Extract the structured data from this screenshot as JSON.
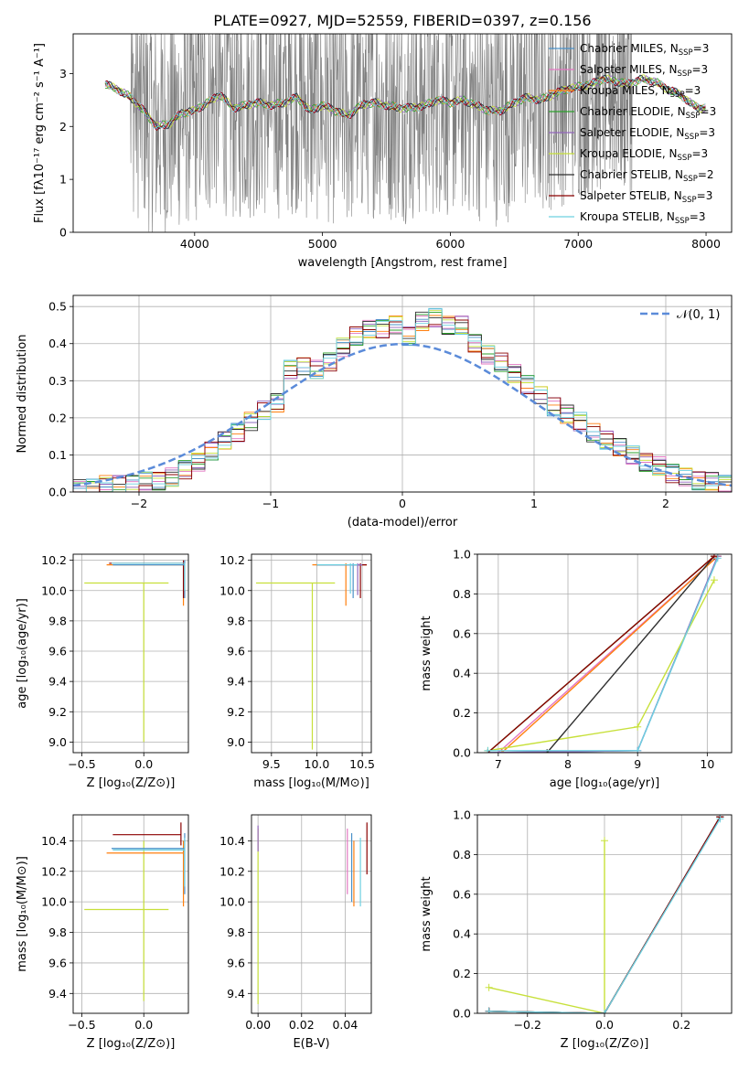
{
  "title": "PLATE=0927, MJD=52559, FIBERID=0397, z=0.156",
  "colors": {
    "spectrum": "#808080",
    "grid": "#b0b0b0",
    "normal": "#5b8bd9",
    "models": [
      "#4a90c8",
      "#e377c2",
      "#ff7f0e",
      "#2ca02c",
      "#9467bd",
      "#c7e03a",
      "#2f2f2f",
      "#8b0000",
      "#6dd0e0"
    ]
  },
  "chart_data": [
    {
      "id": "spectrum",
      "type": "line",
      "xlabel": "wavelength [Angstrom, rest frame]",
      "ylabel": "Flux [fλ10⁻¹⁷ erg cm⁻² s⁻¹ A⁻¹]",
      "xlim": [
        3050,
        8200
      ],
      "ylim": [
        0,
        3.75
      ],
      "xticks": [
        4000,
        5000,
        6000,
        7000,
        8000
      ],
      "yticks": [
        0,
        1,
        2,
        3
      ],
      "grid": false,
      "legend_position": "upper right",
      "legend": [
        {
          "label": "Chabrier MILES, N",
          "sub": "SSP",
          "tail": "=3"
        },
        {
          "label": "Salpeter MILES, N",
          "sub": "SSP",
          "tail": "=3"
        },
        {
          "label": "Kroupa MILES, N",
          "sub": "SSP",
          "tail": "=3"
        },
        {
          "label": "Chabrier ELODIE, N",
          "sub": "SSP",
          "tail": "=3"
        },
        {
          "label": "Salpeter ELODIE, N",
          "sub": "SSP",
          "tail": "=3"
        },
        {
          "label": "Kroupa ELODIE, N",
          "sub": "SSP",
          "tail": "=3"
        },
        {
          "label": "Chabrier STELIB, N",
          "sub": "SSP",
          "tail": "=2"
        },
        {
          "label": "Salpeter STELIB, N",
          "sub": "SSP",
          "tail": "=3"
        },
        {
          "label": "Kroupa STELIB, N",
          "sub": "SSP",
          "tail": "=3"
        }
      ],
      "data_range": [
        3300,
        8000
      ],
      "noisy_range": [
        3500,
        7420
      ],
      "model_x": [
        3300,
        3400,
        3500,
        3600,
        3700,
        3800,
        3900,
        4000,
        4100,
        4200,
        4300,
        4400,
        4500,
        4600,
        4700,
        4800,
        4900,
        5000,
        5100,
        5200,
        5300,
        5400,
        5500,
        5600,
        5700,
        5800,
        5900,
        6000,
        6100,
        6200,
        6300,
        6400,
        6500,
        6600,
        6700,
        6800,
        6900,
        7000,
        7100,
        7200,
        7300,
        7400,
        7500,
        7600,
        7700,
        7800,
        7900,
        7950
      ],
      "model_y": [
        2.8,
        2.7,
        2.55,
        2.3,
        2.0,
        2.05,
        2.25,
        2.3,
        2.45,
        2.6,
        2.35,
        2.4,
        2.45,
        2.4,
        2.45,
        2.55,
        2.3,
        2.4,
        2.3,
        2.2,
        2.4,
        2.45,
        2.4,
        2.35,
        2.35,
        2.4,
        2.5,
        2.45,
        2.5,
        2.4,
        2.3,
        2.3,
        2.45,
        2.55,
        2.5,
        2.6,
        2.7,
        2.75,
        2.8,
        2.9,
        2.85,
        2.8,
        2.9,
        2.85,
        2.7,
        2.6,
        2.4,
        2.35
      ]
    },
    {
      "id": "residuals",
      "type": "histogram",
      "xlabel": "(data-model)/error",
      "ylabel": "Normed distribution",
      "xlim": [
        -2.5,
        2.5
      ],
      "ylim": [
        0,
        0.53
      ],
      "xticks": [
        -2,
        -1,
        0,
        1,
        2
      ],
      "yticks": [
        0.0,
        0.1,
        0.2,
        0.3,
        0.4,
        0.5
      ],
      "grid": true,
      "legend_position": "upper right",
      "legend": [
        {
          "label": "𝒩(0, 1)"
        }
      ],
      "bin_width": 0.1,
      "bin_start": -2.5,
      "hist_values": [
        0.01,
        0.01,
        0.02,
        0.02,
        0.02,
        0.03,
        0.03,
        0.04,
        0.06,
        0.08,
        0.11,
        0.14,
        0.16,
        0.19,
        0.22,
        0.24,
        0.33,
        0.34,
        0.33,
        0.35,
        0.39,
        0.42,
        0.44,
        0.44,
        0.45,
        0.42,
        0.46,
        0.47,
        0.45,
        0.45,
        0.4,
        0.37,
        0.35,
        0.32,
        0.29,
        0.26,
        0.23,
        0.21,
        0.19,
        0.16,
        0.14,
        0.12,
        0.1,
        0.08,
        0.07,
        0.05,
        0.04,
        0.03,
        0.03,
        0.02
      ]
    },
    {
      "id": "age-vs-Z",
      "type": "errorbar",
      "xlabel": "Z [log₁₀(Z/Z⊙)]",
      "ylabel": "age  [log₁₀(age/yr)]",
      "xlim": [
        -0.57,
        0.36
      ],
      "ylim": [
        8.93,
        10.24
      ],
      "xticks": [
        -0.5,
        0.0
      ],
      "yticks": [
        9.0,
        9.2,
        9.4,
        9.6,
        9.8,
        10.0,
        10.2
      ],
      "grid": true
    },
    {
      "id": "age-vs-mass",
      "type": "errorbar",
      "xlabel": "mass [log₁₀(M/M⊙)]",
      "ylabel": "",
      "xlim": [
        9.28,
        10.6
      ],
      "ylim": [
        8.93,
        10.24
      ],
      "xticks": [
        9.5,
        10.0,
        10.5
      ],
      "yticks": [
        9.0,
        9.2,
        9.4,
        9.6,
        9.8,
        10.0,
        10.2
      ],
      "grid": true
    },
    {
      "id": "weight-vs-age",
      "type": "line",
      "xlabel": "age  [log₁₀(age/yr)]",
      "ylabel": "mass weight",
      "xlim": [
        6.7,
        10.35
      ],
      "ylim": [
        0,
        1
      ],
      "xticks": [
        7,
        8,
        9,
        10
      ],
      "yticks": [
        0.0,
        0.2,
        0.4,
        0.6,
        0.8,
        1.0
      ],
      "grid": true,
      "series": [
        {
          "x": [
            6.85,
            9.0,
            10.15
          ],
          "y": [
            0.0,
            0.01,
            0.99
          ]
        },
        {
          "x": [
            7.0,
            10.15
          ],
          "y": [
            0.0,
            0.99
          ]
        },
        {
          "x": [
            7.05,
            10.15
          ],
          "y": [
            0.0,
            0.99
          ]
        },
        {
          "x": [
            6.85,
            10.1
          ],
          "y": [
            0.0,
            0.99
          ]
        },
        {
          "x": [
            6.85,
            9.0,
            10.15
          ],
          "y": [
            0.0,
            0.01,
            0.99
          ]
        },
        {
          "x": [
            6.85,
            9.0,
            10.1
          ],
          "y": [
            0.01,
            0.13,
            0.87
          ]
        },
        {
          "x": [
            7.7,
            10.1
          ],
          "y": [
            0.0,
            0.99
          ]
        },
        {
          "x": [
            6.85,
            10.1
          ],
          "y": [
            0.0,
            0.99
          ]
        },
        {
          "x": [
            6.85,
            9.0,
            10.15
          ],
          "y": [
            0.01,
            0.01,
            0.98
          ]
        }
      ]
    },
    {
      "id": "mass-vs-Z",
      "type": "errorbar",
      "xlabel": "Z [log₁₀(Z/Z⊙)]",
      "ylabel": "mass [log₁₀(M/M⊙)]",
      "xlim": [
        -0.57,
        0.36
      ],
      "ylim": [
        9.27,
        10.57
      ],
      "xticks": [
        -0.5,
        0.0
      ],
      "yticks": [
        9.4,
        9.6,
        9.8,
        10.0,
        10.2,
        10.4
      ],
      "grid": true
    },
    {
      "id": "mass-vs-EBV",
      "type": "errorbar",
      "xlabel": "E(B-V)",
      "ylabel": "",
      "xlim": [
        -0.003,
        0.052
      ],
      "ylim": [
        9.27,
        10.57
      ],
      "xticks": [
        0.0,
        0.02,
        0.04
      ],
      "yticks": [
        9.4,
        9.6,
        9.8,
        10.0,
        10.2,
        10.4
      ],
      "grid": true
    },
    {
      "id": "weight-vs-Z",
      "type": "line",
      "xlabel": "Z [log₁₀(Z/Z⊙)]",
      "ylabel": "mass weight",
      "xlim": [
        -0.33,
        0.33
      ],
      "ylim": [
        0,
        1
      ],
      "xticks": [
        -0.2,
        0.0,
        0.2
      ],
      "yticks": [
        0.0,
        0.2,
        0.4,
        0.6,
        0.8,
        1.0
      ],
      "grid": true,
      "series": [
        {
          "x": [
            -0.3,
            0.0,
            0.3
          ],
          "y": [
            0.01,
            0.0,
            0.99
          ]
        },
        {
          "x": [
            -0.3,
            0.0,
            0.3
          ],
          "y": [
            0.01,
            0.0,
            0.99
          ]
        },
        {
          "x": [
            -0.3,
            0.0,
            0.3
          ],
          "y": [
            0.01,
            0.0,
            0.99
          ]
        },
        {
          "x": [
            -0.3,
            0.0,
            0.3
          ],
          "y": [
            0.01,
            0.0,
            0.99
          ]
        },
        {
          "x": [
            -0.3,
            0.0,
            0.3
          ],
          "y": [
            0.01,
            0.0,
            0.99
          ]
        },
        {
          "x": [
            -0.3,
            0.0,
            0.0
          ],
          "y": [
            0.13,
            0.0,
            0.87
          ]
        },
        {
          "x": [
            -0.3,
            0.0,
            0.3
          ],
          "y": [
            0.01,
            0.0,
            0.99
          ]
        },
        {
          "x": [
            -0.3,
            0.0,
            0.3
          ],
          "y": [
            0.01,
            0.0,
            0.99
          ]
        },
        {
          "x": [
            -0.3,
            0.0,
            0.3
          ],
          "y": [
            0.01,
            0.0,
            0.98
          ]
        }
      ]
    }
  ]
}
